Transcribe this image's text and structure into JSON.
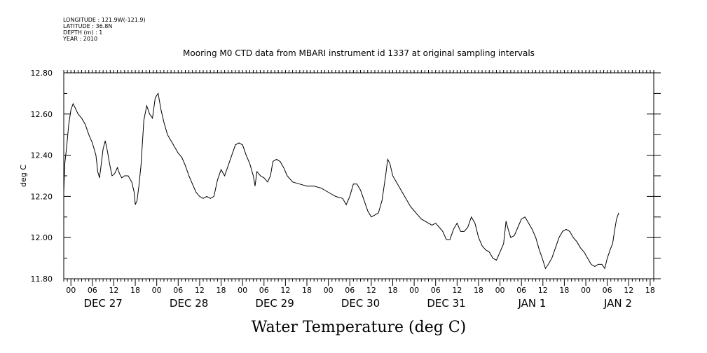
{
  "meta_lines": [
    "LONGITUDE : 121.9W(-121.9)",
    "LATITUDE : 36.8N",
    "DEPTH (m) : 1",
    "YEAR : 2010"
  ],
  "chart_data": {
    "type": "line",
    "title": "Mooring M0 CTD data from MBARI instrument id 1337 at original sampling intervals",
    "xlabel": "Water Temperature (deg C)",
    "ylabel": "deg C",
    "ylim": [
      11.8,
      12.8
    ],
    "xlim_hours_from_dec27_00": [
      -2,
      19
    ],
    "y_ticks": [
      "12.80",
      "12.60",
      "12.40",
      "12.20",
      "12.00",
      "11.80"
    ],
    "y_tick_values": [
      12.8,
      12.6,
      12.4,
      12.2,
      12.0,
      11.8
    ],
    "x_hour_labels": [
      "00",
      "06",
      "12",
      "18"
    ],
    "day_labels": [
      "DEC 27",
      "DEC 28",
      "DEC 29",
      "DEC 30",
      "DEC 31",
      "JAN  1",
      "JAN  2"
    ],
    "grid": false,
    "series": [
      {
        "x_unit": "hours since DEC 27 00:00",
        "points": [
          [
            -2.0,
            12.22
          ],
          [
            -1.7,
            12.36
          ],
          [
            -1.2,
            12.44
          ],
          [
            -0.6,
            12.55
          ],
          [
            0.0,
            12.62
          ],
          [
            0.6,
            12.65
          ],
          [
            1.2,
            12.63
          ],
          [
            2.0,
            12.6
          ],
          [
            3.0,
            12.58
          ],
          [
            4.0,
            12.55
          ],
          [
            5.0,
            12.5
          ],
          [
            6.0,
            12.46
          ],
          [
            7.0,
            12.4
          ],
          [
            7.5,
            12.32
          ],
          [
            8.0,
            12.29
          ],
          [
            8.5,
            12.36
          ],
          [
            9.0,
            12.43
          ],
          [
            9.6,
            12.47
          ],
          [
            10.2,
            12.42
          ],
          [
            10.8,
            12.36
          ],
          [
            11.5,
            12.3
          ],
          [
            12.2,
            12.31
          ],
          [
            13.0,
            12.34
          ],
          [
            13.6,
            12.31
          ],
          [
            14.2,
            12.29
          ],
          [
            15.0,
            12.3
          ],
          [
            16.0,
            12.3
          ],
          [
            17.0,
            12.27
          ],
          [
            17.7,
            12.22
          ],
          [
            18.0,
            12.16
          ],
          [
            18.5,
            12.18
          ],
          [
            19.0,
            12.25
          ],
          [
            19.6,
            12.35
          ],
          [
            20.4,
            12.57
          ],
          [
            21.2,
            12.64
          ],
          [
            22.0,
            12.6
          ],
          [
            22.8,
            12.58
          ],
          [
            23.6,
            12.68
          ],
          [
            24.4,
            12.7
          ],
          [
            25.2,
            12.62
          ],
          [
            26.0,
            12.56
          ],
          [
            27.0,
            12.5
          ],
          [
            28.0,
            12.47
          ],
          [
            29.0,
            12.44
          ],
          [
            30.0,
            12.41
          ],
          [
            31.0,
            12.39
          ],
          [
            32.0,
            12.35
          ],
          [
            33.0,
            12.3
          ],
          [
            34.0,
            12.26
          ],
          [
            35.0,
            12.22
          ],
          [
            36.0,
            12.2
          ],
          [
            37.0,
            12.19
          ],
          [
            38.0,
            12.2
          ],
          [
            39.0,
            12.19
          ],
          [
            40.0,
            12.2
          ],
          [
            41.0,
            12.28
          ],
          [
            42.0,
            12.33
          ],
          [
            43.0,
            12.3
          ],
          [
            44.0,
            12.35
          ],
          [
            45.0,
            12.4
          ],
          [
            46.0,
            12.45
          ],
          [
            47.0,
            12.46
          ],
          [
            48.0,
            12.45
          ],
          [
            49.0,
            12.4
          ],
          [
            50.0,
            12.36
          ],
          [
            51.0,
            12.3
          ],
          [
            51.5,
            12.25
          ],
          [
            52.0,
            12.32
          ],
          [
            53.0,
            12.3
          ],
          [
            54.0,
            12.29
          ],
          [
            55.0,
            12.27
          ],
          [
            55.8,
            12.3
          ],
          [
            56.5,
            12.37
          ],
          [
            57.5,
            12.38
          ],
          [
            58.5,
            12.37
          ],
          [
            59.5,
            12.34
          ],
          [
            60.5,
            12.3
          ],
          [
            62.0,
            12.27
          ],
          [
            64.0,
            12.26
          ],
          [
            66.0,
            12.25
          ],
          [
            68.0,
            12.25
          ],
          [
            70.0,
            12.24
          ],
          [
            72.0,
            12.22
          ],
          [
            74.0,
            12.2
          ],
          [
            76.0,
            12.19
          ],
          [
            77.0,
            12.16
          ],
          [
            78.0,
            12.2
          ],
          [
            79.0,
            12.26
          ],
          [
            80.0,
            12.26
          ],
          [
            81.0,
            12.23
          ],
          [
            82.0,
            12.18
          ],
          [
            83.0,
            12.13
          ],
          [
            84.0,
            12.1
          ],
          [
            85.0,
            12.11
          ],
          [
            86.0,
            12.12
          ],
          [
            87.0,
            12.18
          ],
          [
            88.0,
            12.3
          ],
          [
            88.6,
            12.38
          ],
          [
            89.2,
            12.36
          ],
          [
            90.0,
            12.3
          ],
          [
            91.0,
            12.27
          ],
          [
            92.0,
            12.24
          ],
          [
            93.0,
            12.21
          ],
          [
            94.0,
            12.18
          ],
          [
            95.0,
            12.15
          ],
          [
            96.0,
            12.13
          ],
          [
            97.0,
            12.11
          ],
          [
            98.0,
            12.09
          ],
          [
            99.0,
            12.08
          ],
          [
            100.0,
            12.07
          ],
          [
            101.0,
            12.06
          ],
          [
            102.0,
            12.07
          ],
          [
            103.0,
            12.05
          ],
          [
            104.0,
            12.03
          ],
          [
            105.0,
            11.99
          ],
          [
            106.0,
            11.99
          ],
          [
            107.0,
            12.04
          ],
          [
            108.0,
            12.07
          ],
          [
            109.0,
            12.03
          ],
          [
            110.0,
            12.03
          ],
          [
            111.0,
            12.05
          ],
          [
            112.0,
            12.1
          ],
          [
            113.0,
            12.07
          ],
          [
            114.0,
            12.0
          ],
          [
            115.0,
            11.96
          ],
          [
            116.0,
            11.94
          ],
          [
            117.0,
            11.93
          ],
          [
            118.0,
            11.9
          ],
          [
            119.0,
            11.89
          ],
          [
            120.0,
            11.93
          ],
          [
            121.0,
            11.97
          ],
          [
            121.7,
            12.08
          ],
          [
            122.3,
            12.04
          ],
          [
            123.0,
            12.0
          ],
          [
            124.0,
            12.01
          ],
          [
            125.0,
            12.05
          ],
          [
            126.0,
            12.09
          ],
          [
            127.0,
            12.1
          ],
          [
            128.0,
            12.07
          ],
          [
            129.0,
            12.04
          ],
          [
            130.0,
            12.0
          ],
          [
            131.0,
            11.94
          ],
          [
            132.0,
            11.89
          ],
          [
            132.7,
            11.85
          ],
          [
            133.5,
            11.87
          ],
          [
            134.5,
            11.9
          ],
          [
            135.5,
            11.95
          ],
          [
            136.5,
            12.0
          ],
          [
            137.5,
            12.03
          ],
          [
            138.5,
            12.04
          ],
          [
            139.5,
            12.03
          ],
          [
            140.5,
            12.0
          ],
          [
            141.5,
            11.98
          ],
          [
            142.5,
            11.95
          ],
          [
            143.5,
            11.93
          ],
          [
            144.5,
            11.9
          ],
          [
            145.5,
            11.87
          ],
          [
            146.5,
            11.86
          ],
          [
            147.5,
            11.87
          ],
          [
            148.5,
            11.87
          ],
          [
            149.3,
            11.85
          ],
          [
            150.0,
            11.9
          ],
          [
            150.8,
            11.94
          ],
          [
            151.5,
            11.97
          ],
          [
            152.0,
            12.03
          ],
          [
            152.6,
            12.09
          ],
          [
            153.2,
            12.12
          ]
        ]
      }
    ]
  }
}
